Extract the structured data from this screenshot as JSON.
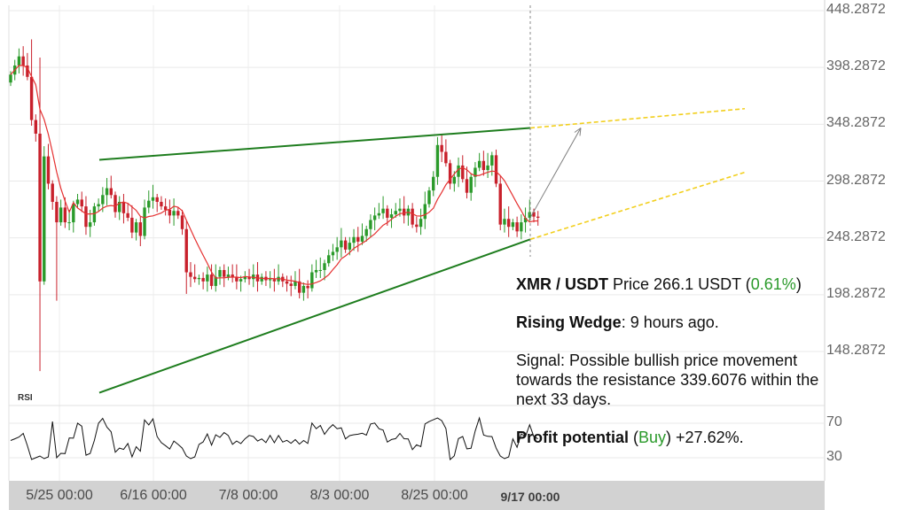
{
  "chart_data": {
    "type": "candlestick",
    "pair": "XMR / USDT",
    "price_label": "Price 266.1 USDT",
    "change": "0.61%",
    "y_ticks": [
      "448.2872",
      "398.2872",
      "348.2872",
      "298.2872",
      "248.2872",
      "198.2872",
      "148.2872"
    ],
    "y_tick_values": [
      448.2872,
      398.2872,
      348.2872,
      298.2872,
      248.2872,
      198.2872,
      148.2872
    ],
    "ylim": [
      128,
      458
    ],
    "rsi_ticks": [
      "70",
      "30"
    ],
    "rsi_tick_values": [
      70,
      30
    ],
    "rsi_label": "RSI",
    "x_ticks": [
      "5/25 00:00",
      "6/16 00:00",
      "7/8 00:00",
      "8/3 00:00",
      "8/25 00:00"
    ],
    "current_x_label": "9/17 00:00",
    "close": [
      392,
      400,
      408,
      400,
      390,
      352,
      340,
      210,
      320,
      296,
      280,
      262,
      275,
      262,
      262,
      278,
      282,
      276,
      258,
      262,
      276,
      278,
      286,
      292,
      286,
      271,
      280,
      270,
      266,
      253,
      262,
      250,
      275,
      281,
      284,
      280,
      276,
      273,
      268,
      272,
      268,
      256,
      218,
      214,
      212,
      213,
      210,
      216,
      206,
      214,
      220,
      214,
      216,
      214,
      210,
      212,
      214,
      212,
      216,
      210,
      214,
      211,
      212,
      210,
      214,
      210,
      208,
      206,
      210,
      200,
      206,
      204,
      218,
      220,
      220,
      226,
      233,
      236,
      240,
      246,
      238,
      244,
      249,
      245,
      250,
      256,
      264,
      268,
      270,
      274,
      266,
      269,
      272,
      274,
      268,
      274,
      260,
      258,
      265,
      278,
      290,
      302,
      330,
      324,
      314,
      296,
      302,
      312,
      300,
      288,
      302,
      310,
      316,
      308,
      312,
      321,
      296,
      260,
      265,
      258,
      262,
      254,
      262,
      266,
      271,
      267,
      266
    ],
    "rising_wedge": {
      "resistance_start": 317,
      "resistance_end": 345,
      "support_start": 112,
      "support_end": 247
    },
    "projection": {
      "resistance_end": 362,
      "support_end": 306,
      "target": 339.6076
    },
    "info": {
      "pattern": "Rising Wedge",
      "pattern_time": ": 9 hours ago.",
      "signal": "Signal: Possible bullish price movement towards the resistance 339.6076 within the next 33 days.",
      "profit_label": "Profit potential",
      "profit_side": "Buy",
      "profit_value": "+27.62%."
    },
    "colors": {
      "up": "#2a9a2a",
      "down": "#c8202b",
      "ma": "#e53030",
      "wedge": "#1e7d1e",
      "projection": "#f2cf1d",
      "arrow": "#808080",
      "change": "#2b9a2b"
    }
  }
}
